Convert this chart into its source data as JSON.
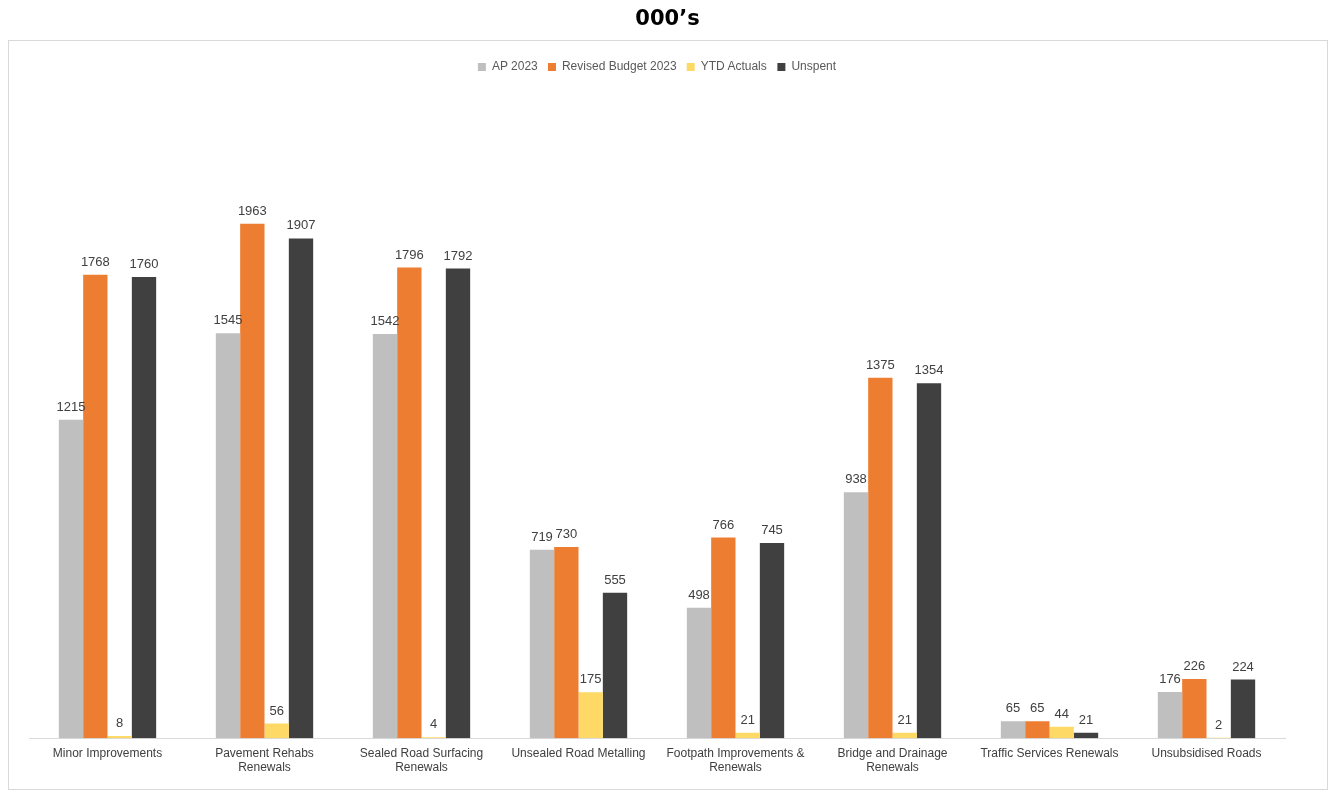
{
  "chart_data": {
    "type": "bar",
    "title": "000’s",
    "categories": [
      "Minor Improvements",
      "Pavement Rehabs Renewals",
      "Sealed Road Surfacing Renewals",
      "Unsealed Road Metalling",
      "Footpath Improvements & Renewals",
      "Bridge and Drainage Renewals",
      "Traffic Services Renewals",
      "Unsubsidised Roads"
    ],
    "series": [
      {
        "name": "AP 2023",
        "color": "#bfbfbf",
        "values": [
          1215,
          1545,
          1542,
          719,
          498,
          938,
          65,
          176
        ]
      },
      {
        "name": "Revised Budget 2023",
        "color": "#ed7d31",
        "values": [
          1768,
          1963,
          1796,
          730,
          766,
          1375,
          65,
          226
        ]
      },
      {
        "name": "YTD Actuals",
        "color": "#ffd966",
        "values": [
          8,
          56,
          4,
          175,
          21,
          21,
          44,
          2
        ]
      },
      {
        "name": "Unspent",
        "color": "#404040",
        "values": [
          1760,
          1907,
          1792,
          555,
          745,
          1354,
          21,
          224
        ]
      }
    ],
    "data_labels": true,
    "grid": false,
    "legend": "top"
  }
}
